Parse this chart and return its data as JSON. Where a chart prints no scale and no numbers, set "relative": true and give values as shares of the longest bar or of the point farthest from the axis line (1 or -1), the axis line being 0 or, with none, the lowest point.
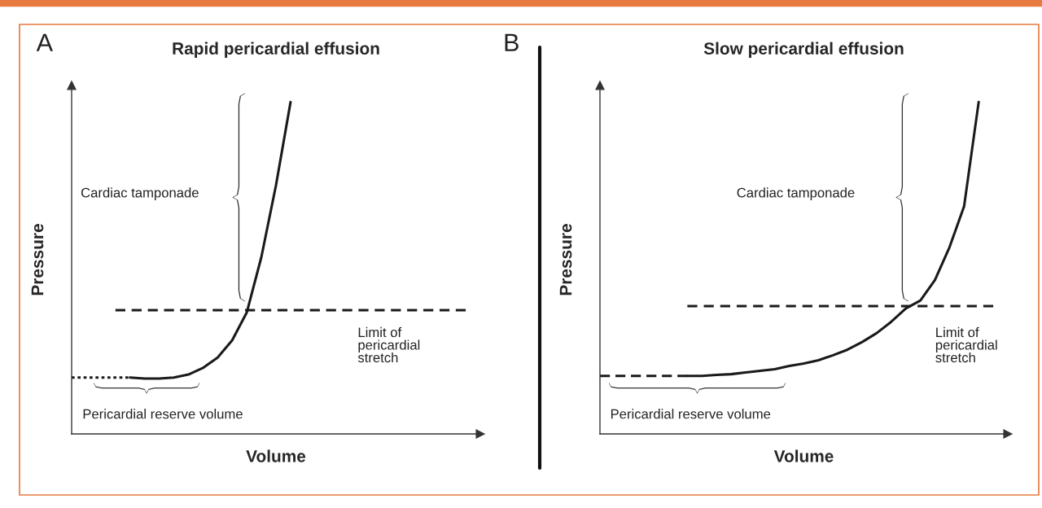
{
  "chart_data": [
    {
      "type": "line",
      "title": "Rapid pericardial effusion",
      "xlabel": "Volume",
      "ylabel": "Pressure",
      "relative": true,
      "categories": [
        null,
        null,
        null,
        null,
        null,
        null,
        null,
        null,
        null,
        null,
        null,
        null,
        null,
        null,
        null,
        null,
        null,
        null,
        null,
        null,
        null,
        null,
        null,
        null,
        null,
        null,
        null,
        null
      ],
      "series": [
        {
          "color": "#1a1a1a",
          "line_style": "dotted",
          "values": [
            0.17,
            0.17,
            0.17,
            0.17,
            0.17,
            null,
            null,
            null,
            null,
            null,
            null,
            null,
            null,
            null,
            null,
            null,
            null,
            null,
            null,
            null,
            null,
            null,
            null,
            null,
            null,
            null,
            null,
            null
          ]
        },
        {
          "color": "#1a1a1a",
          "line_style": "solid",
          "values": [
            null,
            null,
            null,
            null,
            0.17,
            0.167,
            0.167,
            0.17,
            0.179,
            0.199,
            0.23,
            0.282,
            0.366,
            0.533,
            0.749,
            1.0,
            null,
            null,
            null,
            null,
            null,
            null,
            null,
            null,
            null,
            null,
            null,
            null
          ]
        },
        {
          "color": "#1a1a1a",
          "line_style": "dashed",
          "values": [
            null,
            null,
            null,
            0.373,
            0.373,
            0.373,
            0.373,
            0.373,
            0.373,
            0.373,
            0.373,
            0.373,
            0.373,
            0.373,
            0.373,
            0.373,
            0.373,
            0.373,
            0.373,
            0.373,
            0.373,
            0.373,
            0.373,
            0.373,
            0.373,
            0.373,
            0.373,
            0.373
          ]
        }
      ],
      "annotations": [
        "A",
        "Cardiac tamponade",
        "Limit of\npericardial\nstretch",
        "Pericardial reserve volume"
      ]
    },
    {
      "type": "line",
      "title": "Slow pericardial effusion",
      "xlabel": "Volume",
      "ylabel": "Pressure",
      "relative": true,
      "categories": [
        null,
        null,
        null,
        null,
        null,
        null,
        null,
        null,
        null,
        null,
        null,
        null,
        null,
        null,
        null,
        null,
        null,
        null,
        null,
        null,
        null,
        null,
        null,
        null,
        null,
        null,
        null,
        null
      ],
      "series": [
        {
          "color": "#1a1a1a",
          "line_style": "dashed",
          "values": [
            0.175,
            0.175,
            0.175,
            0.175,
            0.175,
            0.175,
            0.175,
            null,
            null,
            null,
            null,
            null,
            null,
            null,
            null,
            null,
            null,
            null,
            null,
            null,
            null,
            null,
            null,
            null,
            null,
            null,
            null,
            null
          ]
        },
        {
          "color": "#1a1a1a",
          "line_style": "solid",
          "values": [
            null,
            null,
            null,
            null,
            null,
            null,
            0.175,
            0.175,
            0.178,
            0.18,
            0.185,
            0.19,
            0.195,
            0.205,
            0.212,
            0.222,
            0.237,
            0.254,
            0.277,
            0.304,
            0.338,
            0.378,
            0.402,
            0.464,
            0.563,
            0.686,
            1.0,
            null
          ]
        },
        {
          "color": "#1a1a1a",
          "line_style": "dashed",
          "values": [
            null,
            null,
            null,
            null,
            null,
            null,
            0.385,
            0.385,
            0.385,
            0.385,
            0.385,
            0.385,
            0.385,
            0.385,
            0.385,
            0.385,
            0.385,
            0.385,
            0.385,
            0.385,
            0.385,
            0.385,
            0.385,
            0.385,
            0.385,
            0.385,
            0.385,
            0.385
          ]
        }
      ],
      "annotations": [
        "B",
        "Cardiac tamponade",
        "Limit of\npericardial\nstretch",
        "Pericardial reserve volume"
      ]
    }
  ]
}
